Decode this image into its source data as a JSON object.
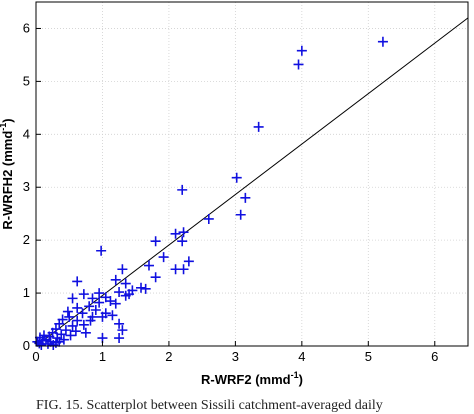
{
  "chart_data": {
    "type": "scatter",
    "xlabel_text": "R-WRF2 (mmd",
    "xlabel_sup": "-1",
    "xlabel_close": ")",
    "ylabel_text": "R-WRFH2 (mmd",
    "ylabel_sup": "-1",
    "ylabel_close": ")",
    "xlim": [
      0,
      6.5
    ],
    "ylim": [
      0,
      6.5
    ],
    "xticks": [
      0,
      1,
      2,
      3,
      4,
      5,
      6
    ],
    "yticks": [
      0,
      1,
      2,
      3,
      4,
      5,
      6
    ],
    "grid": true,
    "marker": "plus",
    "marker_color": "#1010e0",
    "fit_line": {
      "x": [
        0,
        6.5
      ],
      "y": [
        0,
        6.2
      ]
    },
    "fit_line_color": "#000000",
    "points": [
      {
        "x": 5.22,
        "y": 5.75
      },
      {
        "x": 4.0,
        "y": 5.58
      },
      {
        "x": 3.95,
        "y": 5.32
      },
      {
        "x": 3.35,
        "y": 4.14
      },
      {
        "x": 3.02,
        "y": 3.18
      },
      {
        "x": 3.15,
        "y": 2.8
      },
      {
        "x": 3.08,
        "y": 2.48
      },
      {
        "x": 2.2,
        "y": 2.95
      },
      {
        "x": 2.6,
        "y": 2.4
      },
      {
        "x": 2.22,
        "y": 2.15
      },
      {
        "x": 2.1,
        "y": 2.12
      },
      {
        "x": 2.2,
        "y": 1.98
      },
      {
        "x": 1.8,
        "y": 1.98
      },
      {
        "x": 0.98,
        "y": 1.8
      },
      {
        "x": 1.92,
        "y": 1.68
      },
      {
        "x": 2.3,
        "y": 1.6
      },
      {
        "x": 2.1,
        "y": 1.45
      },
      {
        "x": 2.22,
        "y": 1.45
      },
      {
        "x": 1.3,
        "y": 1.45
      },
      {
        "x": 1.7,
        "y": 1.52
      },
      {
        "x": 1.8,
        "y": 1.3
      },
      {
        "x": 1.2,
        "y": 1.25
      },
      {
        "x": 0.62,
        "y": 1.22
      },
      {
        "x": 1.35,
        "y": 1.18
      },
      {
        "x": 1.58,
        "y": 1.1
      },
      {
        "x": 1.45,
        "y": 1.05
      },
      {
        "x": 1.65,
        "y": 1.08
      },
      {
        "x": 1.4,
        "y": 0.98
      },
      {
        "x": 0.95,
        "y": 1.0
      },
      {
        "x": 0.72,
        "y": 0.98
      },
      {
        "x": 0.85,
        "y": 0.9
      },
      {
        "x": 1.05,
        "y": 0.92
      },
      {
        "x": 1.12,
        "y": 0.85
      },
      {
        "x": 0.95,
        "y": 0.82
      },
      {
        "x": 1.2,
        "y": 0.8
      },
      {
        "x": 0.55,
        "y": 0.9
      },
      {
        "x": 0.8,
        "y": 0.75
      },
      {
        "x": 0.62,
        "y": 0.72
      },
      {
        "x": 0.7,
        "y": 0.62
      },
      {
        "x": 0.48,
        "y": 0.65
      },
      {
        "x": 0.9,
        "y": 0.68
      },
      {
        "x": 1.05,
        "y": 0.62
      },
      {
        "x": 0.5,
        "y": 0.55
      },
      {
        "x": 0.62,
        "y": 0.48
      },
      {
        "x": 0.4,
        "y": 0.5
      },
      {
        "x": 0.82,
        "y": 0.48
      },
      {
        "x": 1.25,
        "y": 0.42
      },
      {
        "x": 0.72,
        "y": 0.4
      },
      {
        "x": 0.55,
        "y": 0.38
      },
      {
        "x": 0.35,
        "y": 0.42
      },
      {
        "x": 0.45,
        "y": 0.3
      },
      {
        "x": 0.6,
        "y": 0.28
      },
      {
        "x": 0.3,
        "y": 0.32
      },
      {
        "x": 0.38,
        "y": 0.22
      },
      {
        "x": 0.25,
        "y": 0.25
      },
      {
        "x": 0.52,
        "y": 0.2
      },
      {
        "x": 0.2,
        "y": 0.18
      },
      {
        "x": 0.32,
        "y": 0.15
      },
      {
        "x": 0.15,
        "y": 0.12
      },
      {
        "x": 0.42,
        "y": 0.12
      },
      {
        "x": 0.22,
        "y": 0.08
      },
      {
        "x": 0.1,
        "y": 0.1
      },
      {
        "x": 0.3,
        "y": 0.06
      },
      {
        "x": 0.05,
        "y": 0.05
      },
      {
        "x": 0.18,
        "y": 0.04
      },
      {
        "x": 0.12,
        "y": 0.2
      },
      {
        "x": 0.08,
        "y": 0.02
      },
      {
        "x": 0.02,
        "y": 0.08
      },
      {
        "x": 0.26,
        "y": 0.02
      },
      {
        "x": 0.06,
        "y": 0.16
      },
      {
        "x": 0.35,
        "y": 0.08
      },
      {
        "x": 1.0,
        "y": 0.15
      },
      {
        "x": 1.25,
        "y": 0.15
      },
      {
        "x": 0.75,
        "y": 0.25
      },
      {
        "x": 1.3,
        "y": 0.3
      },
      {
        "x": 1.0,
        "y": 0.55
      },
      {
        "x": 1.15,
        "y": 0.58
      },
      {
        "x": 1.35,
        "y": 0.95
      },
      {
        "x": 1.25,
        "y": 1.02
      },
      {
        "x": 0.85,
        "y": 0.55
      }
    ]
  },
  "caption": "FIG. 15. Scatterplot between Sissili catchment-averaged daily"
}
